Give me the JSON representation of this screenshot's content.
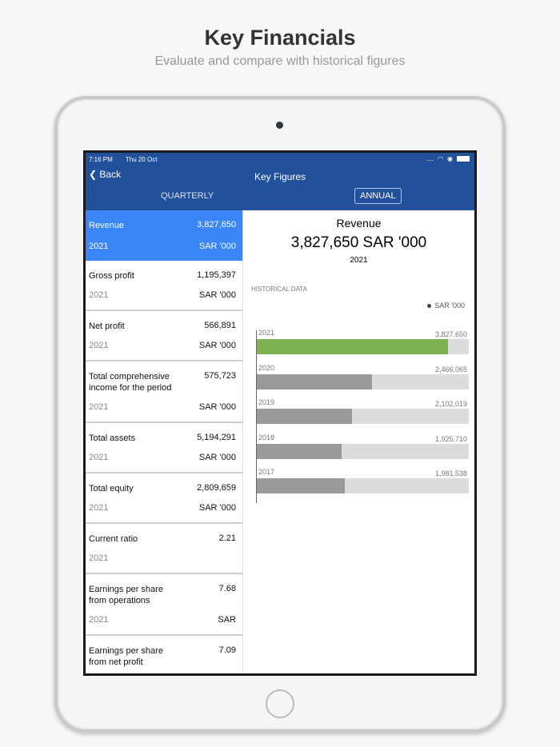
{
  "hero": {
    "title": "Key Financials",
    "subtitle": "Evaluate and compare with historical figures"
  },
  "status": {
    "time": "7:16 PM",
    "date": "Thu 20 Oct",
    "signal": "....",
    "icons": [
      "wifi-icon",
      "location-icon",
      "battery-icon"
    ]
  },
  "nav": {
    "back": "Back",
    "title": "Key Figures"
  },
  "segments": {
    "quarterly": "QUARTERLY",
    "annual": "ANNUAL",
    "selected": "ANNUAL"
  },
  "list": [
    {
      "label": "Revenue",
      "value": "3,827,650",
      "year": "2021",
      "unit": "SAR '000",
      "selected": true
    },
    {
      "label": "Gross profit",
      "value": "1,195,397",
      "year": "2021",
      "unit": "SAR '000"
    },
    {
      "label": "Net profit",
      "value": "566,891",
      "year": "2021",
      "unit": "SAR '000"
    },
    {
      "label": "Total comprehensive income for the period",
      "value": "575,723",
      "year": "2021",
      "unit": "SAR '000"
    },
    {
      "label": "Total assets",
      "value": "5,194,291",
      "year": "2021",
      "unit": "SAR '000"
    },
    {
      "label": "Total equity",
      "value": "2,809,659",
      "year": "2021",
      "unit": "SAR '000"
    },
    {
      "label": "Current ratio",
      "value": "2.21",
      "year": "2021",
      "unit": ""
    },
    {
      "label": "Earnings per share from operations",
      "value": "7.68",
      "year": "2021",
      "unit": "SAR"
    },
    {
      "label": "Earnings per share from net profit",
      "value": "7.09",
      "year": "",
      "unit": ""
    }
  ],
  "detail": {
    "title": "Revenue",
    "value": "3,827,650 SAR '000",
    "year": "2021",
    "historical_label": "HISTORICAL DATA",
    "legend": "SAR '000"
  },
  "colors": {
    "nav": "#22509a",
    "selected_row": "#3a86f7",
    "current_bar": "#7cb250",
    "past_bar": "#9a9a9a",
    "track": "#dcdcdc"
  },
  "chart_data": {
    "type": "bar",
    "orientation": "horizontal",
    "categories": [
      "2021",
      "2020",
      "2019",
      "2018",
      "2017"
    ],
    "values": [
      3827650,
      2466065,
      2102019,
      1925710,
      1981538
    ],
    "value_labels": [
      "3,827,650",
      "2,466,065",
      "2,102,019",
      "1,925,710",
      "1,981,538"
    ],
    "xlim": [
      400000,
      4200000
    ],
    "legend": [
      "SAR '000"
    ],
    "legend_position": "top-right",
    "grid": false
  }
}
